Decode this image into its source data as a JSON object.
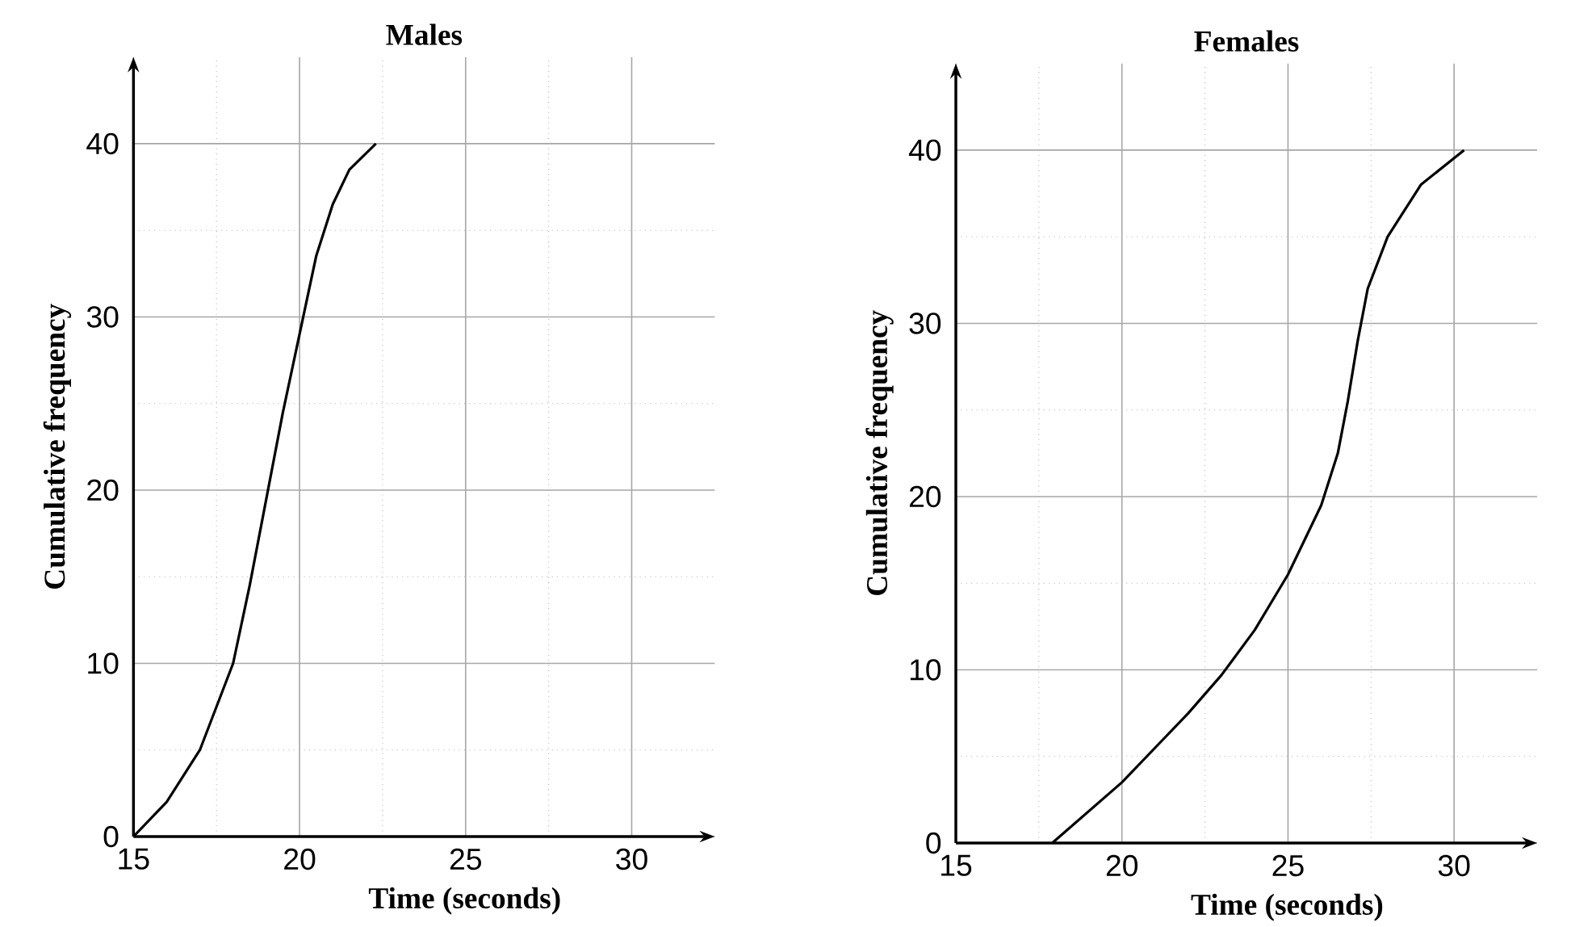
{
  "chart_data": [
    {
      "type": "line",
      "title": "Males",
      "xlabel": "Time (seconds)",
      "ylabel": "Cumulative frequency",
      "xlim": [
        15,
        32.5
      ],
      "ylim": [
        0,
        45
      ],
      "xticks": [
        15,
        20,
        25,
        30
      ],
      "yticks": [
        0,
        10,
        20,
        30,
        40
      ],
      "grid": true,
      "line_style": "solid",
      "series": [
        {
          "color": "#000000",
          "x": [
            15,
            16,
            17,
            18,
            18.5,
            19,
            19.5,
            20,
            20.5,
            21,
            21.5,
            22.3
          ],
          "values": [
            0,
            2,
            5,
            10,
            14.5,
            19.5,
            24.5,
            29,
            33.5,
            36.5,
            38.5,
            40
          ]
        }
      ]
    },
    {
      "type": "line",
      "title": "Females",
      "xlabel": "Time (seconds)",
      "ylabel": "Cumulative frequency",
      "xlim": [
        15,
        32.5
      ],
      "ylim": [
        0,
        45
      ],
      "xticks": [
        15,
        20,
        25,
        30
      ],
      "yticks": [
        0,
        10,
        20,
        30,
        40
      ],
      "grid": true,
      "line_style": "solid",
      "series": [
        {
          "color": "#000000",
          "x": [
            17.9,
            20,
            21,
            22,
            23,
            24,
            25,
            26,
            26.5,
            26.8,
            27.1,
            27.4,
            28,
            29,
            30.3
          ],
          "values": [
            0,
            3.5,
            5.5,
            7.5,
            9.7,
            12.3,
            15.5,
            19.5,
            22.5,
            25.5,
            29,
            32,
            35,
            38,
            40
          ]
        }
      ]
    }
  ]
}
